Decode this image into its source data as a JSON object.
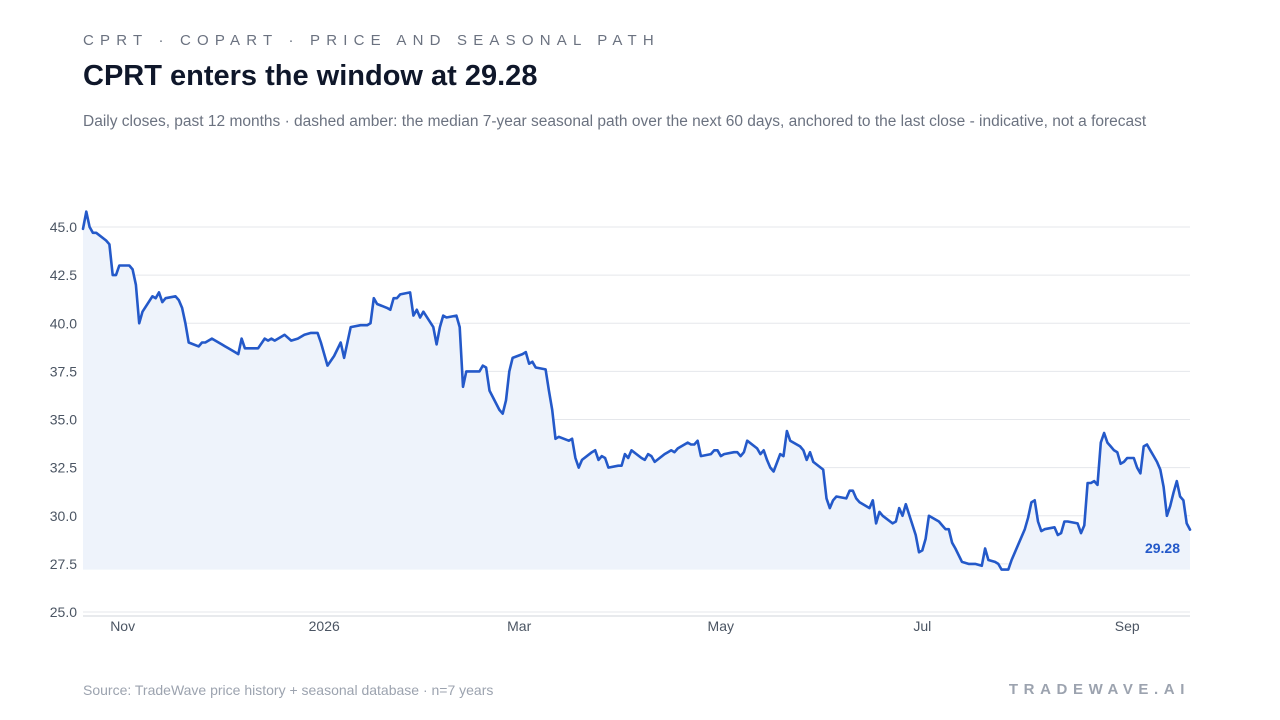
{
  "header": {
    "kicker": "CPRT · COPART · PRICE AND SEASONAL PATH",
    "title": "CPRT enters the window at 29.28",
    "subtitle": "Daily closes, past 12 months · dashed amber: the median 7-year seasonal path over the next 60 days, anchored to the last close - indicative, not a forecast"
  },
  "footer": {
    "source": "Source: TradeWave price history + seasonal database · n=7 years",
    "brand": "TRADEWAVE.AI"
  },
  "colors": {
    "line": "#2459c9",
    "fill": "#eef3fb",
    "grid": "#e5e7eb",
    "axis_text": "#4b5563",
    "seasonal": "#f59e0b"
  },
  "chart_data": {
    "type": "area",
    "title": "CPRT enters the window at 29.28",
    "xlabel": "",
    "ylabel": "",
    "ylim": [
      25.0,
      45.0
    ],
    "yticks": [
      25.0,
      27.5,
      30.0,
      32.5,
      35.0,
      37.5,
      40.0,
      42.5,
      45.0
    ],
    "xlim": [
      "2025-10-20",
      "2026-09-20"
    ],
    "xticks": [
      {
        "date": "2025-11-01",
        "label": "Nov"
      },
      {
        "date": "2026-01-01",
        "label": "2026"
      },
      {
        "date": "2026-03-01",
        "label": "Mar"
      },
      {
        "date": "2026-05-01",
        "label": "May"
      },
      {
        "date": "2026-07-01",
        "label": "Jul"
      },
      {
        "date": "2026-09-01",
        "label": "Sep"
      }
    ],
    "grid": true,
    "last_value_label": "29.28",
    "series": [
      {
        "name": "",
        "points": [
          [
            "2025-10-20",
            44.9
          ],
          [
            "2025-10-21",
            45.8
          ],
          [
            "2025-10-22",
            45.0
          ],
          [
            "2025-10-23",
            44.7
          ],
          [
            "2025-10-24",
            44.7
          ],
          [
            "2025-10-27",
            44.3
          ],
          [
            "2025-10-28",
            44.1
          ],
          [
            "2025-10-29",
            42.5
          ],
          [
            "2025-10-30",
            42.5
          ],
          [
            "2025-10-31",
            43.0
          ],
          [
            "2025-11-03",
            43.0
          ],
          [
            "2025-11-04",
            42.8
          ],
          [
            "2025-11-05",
            42.0
          ],
          [
            "2025-11-06",
            40.0
          ],
          [
            "2025-11-07",
            40.6
          ],
          [
            "2025-11-10",
            41.4
          ],
          [
            "2025-11-11",
            41.3
          ],
          [
            "2025-11-12",
            41.6
          ],
          [
            "2025-11-13",
            41.1
          ],
          [
            "2025-11-14",
            41.3
          ],
          [
            "2025-11-17",
            41.4
          ],
          [
            "2025-11-18",
            41.2
          ],
          [
            "2025-11-19",
            40.8
          ],
          [
            "2025-11-20",
            40.0
          ],
          [
            "2025-11-21",
            39.0
          ],
          [
            "2025-11-24",
            38.8
          ],
          [
            "2025-11-25",
            39.0
          ],
          [
            "2025-11-26",
            39.0
          ],
          [
            "2025-11-28",
            39.2
          ],
          [
            "2025-12-01",
            38.9
          ],
          [
            "2025-12-02",
            38.8
          ],
          [
            "2025-12-03",
            38.7
          ],
          [
            "2025-12-05",
            38.5
          ],
          [
            "2025-12-06",
            38.4
          ],
          [
            "2025-12-07",
            39.2
          ],
          [
            "2025-12-08",
            38.7
          ],
          [
            "2025-12-11",
            38.7
          ],
          [
            "2025-12-12",
            38.7
          ],
          [
            "2025-12-14",
            39.2
          ],
          [
            "2025-12-15",
            39.1
          ],
          [
            "2025-12-16",
            39.2
          ],
          [
            "2025-12-17",
            39.1
          ],
          [
            "2025-12-19",
            39.3
          ],
          [
            "2025-12-20",
            39.4
          ],
          [
            "2025-12-22",
            39.1
          ],
          [
            "2025-12-24",
            39.2
          ],
          [
            "2025-12-26",
            39.4
          ],
          [
            "2025-12-28",
            39.5
          ],
          [
            "2025-12-30",
            39.5
          ],
          [
            "2025-12-31",
            39.0
          ],
          [
            "2026-01-02",
            37.8
          ],
          [
            "2026-01-04",
            38.3
          ],
          [
            "2026-01-06",
            39.0
          ],
          [
            "2026-01-07",
            38.2
          ],
          [
            "2026-01-08",
            39.0
          ],
          [
            "2026-01-09",
            39.8
          ],
          [
            "2026-01-12",
            39.9
          ],
          [
            "2026-01-14",
            39.9
          ],
          [
            "2026-01-15",
            40.0
          ],
          [
            "2026-01-16",
            41.3
          ],
          [
            "2026-01-17",
            41.0
          ],
          [
            "2026-01-20",
            40.8
          ],
          [
            "2026-01-21",
            40.7
          ],
          [
            "2026-01-22",
            41.3
          ],
          [
            "2026-01-23",
            41.3
          ],
          [
            "2026-01-24",
            41.5
          ],
          [
            "2026-01-27",
            41.6
          ],
          [
            "2026-01-28",
            40.4
          ],
          [
            "2026-01-29",
            40.7
          ],
          [
            "2026-01-30",
            40.3
          ],
          [
            "2026-01-31",
            40.6
          ],
          [
            "2026-02-03",
            39.8
          ],
          [
            "2026-02-04",
            38.9
          ],
          [
            "2026-02-05",
            39.8
          ],
          [
            "2026-02-06",
            40.4
          ],
          [
            "2026-02-07",
            40.3
          ],
          [
            "2026-02-10",
            40.4
          ],
          [
            "2026-02-11",
            39.8
          ],
          [
            "2026-02-12",
            36.7
          ],
          [
            "2026-02-13",
            37.5
          ],
          [
            "2026-02-17",
            37.5
          ],
          [
            "2026-02-18",
            37.8
          ],
          [
            "2026-02-19",
            37.7
          ],
          [
            "2026-02-20",
            36.5
          ],
          [
            "2026-02-23",
            35.5
          ],
          [
            "2026-02-24",
            35.3
          ],
          [
            "2026-02-25",
            36.0
          ],
          [
            "2026-02-26",
            37.5
          ],
          [
            "2026-02-27",
            38.2
          ],
          [
            "2026-03-02",
            38.4
          ],
          [
            "2026-03-03",
            38.5
          ],
          [
            "2026-03-04",
            37.9
          ],
          [
            "2026-03-05",
            38.0
          ],
          [
            "2026-03-06",
            37.7
          ],
          [
            "2026-03-09",
            37.6
          ],
          [
            "2026-03-10",
            36.5
          ],
          [
            "2026-03-11",
            35.5
          ],
          [
            "2026-03-12",
            34.0
          ],
          [
            "2026-03-13",
            34.1
          ],
          [
            "2026-03-16",
            33.9
          ],
          [
            "2026-03-17",
            34.0
          ],
          [
            "2026-03-18",
            33.0
          ],
          [
            "2026-03-19",
            32.5
          ],
          [
            "2026-03-20",
            32.9
          ],
          [
            "2026-03-23",
            33.3
          ],
          [
            "2026-03-24",
            33.4
          ],
          [
            "2026-03-25",
            32.9
          ],
          [
            "2026-03-26",
            33.1
          ],
          [
            "2026-03-27",
            33.0
          ],
          [
            "2026-03-28",
            32.5
          ],
          [
            "2026-03-31",
            32.6
          ],
          [
            "2026-04-01",
            32.6
          ],
          [
            "2026-04-02",
            33.2
          ],
          [
            "2026-04-03",
            33.0
          ],
          [
            "2026-04-04",
            33.4
          ],
          [
            "2026-04-07",
            33.0
          ],
          [
            "2026-04-08",
            32.9
          ],
          [
            "2026-04-09",
            33.2
          ],
          [
            "2026-04-10",
            33.1
          ],
          [
            "2026-04-11",
            32.8
          ],
          [
            "2026-04-14",
            33.2
          ],
          [
            "2026-04-15",
            33.3
          ],
          [
            "2026-04-16",
            33.4
          ],
          [
            "2026-04-17",
            33.3
          ],
          [
            "2026-04-18",
            33.5
          ],
          [
            "2026-04-21",
            33.8
          ],
          [
            "2026-04-22",
            33.7
          ],
          [
            "2026-04-23",
            33.7
          ],
          [
            "2026-04-24",
            33.9
          ],
          [
            "2026-04-25",
            33.1
          ],
          [
            "2026-04-28",
            33.2
          ],
          [
            "2026-04-29",
            33.4
          ],
          [
            "2026-04-30",
            33.4
          ],
          [
            "2026-05-01",
            33.1
          ],
          [
            "2026-05-02",
            33.2
          ],
          [
            "2026-05-05",
            33.3
          ],
          [
            "2026-05-06",
            33.3
          ],
          [
            "2026-05-07",
            33.1
          ],
          [
            "2026-05-08",
            33.3
          ],
          [
            "2026-05-09",
            33.9
          ],
          [
            "2026-05-12",
            33.5
          ],
          [
            "2026-05-13",
            33.2
          ],
          [
            "2026-05-14",
            33.4
          ],
          [
            "2026-05-15",
            32.9
          ],
          [
            "2026-05-16",
            32.5
          ],
          [
            "2026-05-17",
            32.3
          ],
          [
            "2026-05-19",
            33.2
          ],
          [
            "2026-05-20",
            33.1
          ],
          [
            "2026-05-21",
            34.4
          ],
          [
            "2026-05-22",
            33.9
          ],
          [
            "2026-05-25",
            33.6
          ],
          [
            "2026-05-26",
            33.4
          ],
          [
            "2026-05-27",
            32.9
          ],
          [
            "2026-05-28",
            33.3
          ],
          [
            "2026-05-29",
            32.8
          ],
          [
            "2026-06-01",
            32.4
          ],
          [
            "2026-06-02",
            30.9
          ],
          [
            "2026-06-03",
            30.4
          ],
          [
            "2026-06-04",
            30.8
          ],
          [
            "2026-06-05",
            31.0
          ],
          [
            "2026-06-08",
            30.9
          ],
          [
            "2026-06-09",
            31.3
          ],
          [
            "2026-06-10",
            31.3
          ],
          [
            "2026-06-11",
            30.9
          ],
          [
            "2026-06-12",
            30.7
          ],
          [
            "2026-06-15",
            30.4
          ],
          [
            "2026-06-16",
            30.8
          ],
          [
            "2026-06-17",
            29.6
          ],
          [
            "2026-06-18",
            30.2
          ],
          [
            "2026-06-19",
            30.0
          ],
          [
            "2026-06-22",
            29.6
          ],
          [
            "2026-06-23",
            29.7
          ],
          [
            "2026-06-24",
            30.4
          ],
          [
            "2026-06-25",
            30.0
          ],
          [
            "2026-06-26",
            30.6
          ],
          [
            "2026-06-29",
            29.0
          ],
          [
            "2026-06-30",
            28.1
          ],
          [
            "2026-07-01",
            28.2
          ],
          [
            "2026-07-02",
            28.8
          ],
          [
            "2026-07-03",
            30.0
          ],
          [
            "2026-07-06",
            29.7
          ],
          [
            "2026-07-07",
            29.5
          ],
          [
            "2026-07-08",
            29.3
          ],
          [
            "2026-07-09",
            29.3
          ],
          [
            "2026-07-10",
            28.6
          ],
          [
            "2026-07-11",
            28.3
          ],
          [
            "2026-07-13",
            27.6
          ],
          [
            "2026-07-15",
            27.5
          ],
          [
            "2026-07-17",
            27.5
          ],
          [
            "2026-07-19",
            27.4
          ],
          [
            "2026-07-20",
            28.3
          ],
          [
            "2026-07-21",
            27.7
          ],
          [
            "2026-07-23",
            27.6
          ],
          [
            "2026-07-24",
            27.5
          ],
          [
            "2026-07-25",
            27.2
          ],
          [
            "2026-07-27",
            27.2
          ],
          [
            "2026-07-28",
            27.7
          ],
          [
            "2026-07-30",
            28.5
          ],
          [
            "2026-08-01",
            29.3
          ],
          [
            "2026-08-02",
            29.9
          ],
          [
            "2026-08-03",
            30.7
          ],
          [
            "2026-08-04",
            30.8
          ],
          [
            "2026-08-05",
            29.7
          ],
          [
            "2026-08-06",
            29.2
          ],
          [
            "2026-08-07",
            29.3
          ],
          [
            "2026-08-10",
            29.4
          ],
          [
            "2026-08-11",
            29.0
          ],
          [
            "2026-08-12",
            29.1
          ],
          [
            "2026-08-13",
            29.7
          ],
          [
            "2026-08-14",
            29.7
          ],
          [
            "2026-08-17",
            29.6
          ],
          [
            "2026-08-18",
            29.1
          ],
          [
            "2026-08-19",
            29.5
          ],
          [
            "2026-08-20",
            31.7
          ],
          [
            "2026-08-21",
            31.7
          ],
          [
            "2026-08-22",
            31.8
          ],
          [
            "2026-08-23",
            31.6
          ],
          [
            "2026-08-24",
            33.8
          ],
          [
            "2026-08-25",
            34.3
          ],
          [
            "2026-08-26",
            33.8
          ],
          [
            "2026-08-27",
            33.6
          ],
          [
            "2026-08-28",
            33.4
          ],
          [
            "2026-08-29",
            33.3
          ],
          [
            "2026-08-30",
            32.7
          ],
          [
            "2026-08-31",
            32.8
          ],
          [
            "2026-09-01",
            33.0
          ],
          [
            "2026-09-02",
            33.0
          ],
          [
            "2026-09-03",
            33.0
          ],
          [
            "2026-09-04",
            32.5
          ],
          [
            "2026-09-05",
            32.2
          ],
          [
            "2026-09-06",
            33.6
          ],
          [
            "2026-09-07",
            33.7
          ],
          [
            "2026-09-08",
            33.4
          ],
          [
            "2026-09-09",
            33.1
          ],
          [
            "2026-09-10",
            32.8
          ],
          [
            "2026-09-11",
            32.4
          ],
          [
            "2026-09-12",
            31.5
          ],
          [
            "2026-09-13",
            30.0
          ],
          [
            "2026-09-14",
            30.5
          ],
          [
            "2026-09-15",
            31.2
          ],
          [
            "2026-09-16",
            31.8
          ],
          [
            "2026-09-17",
            31.0
          ],
          [
            "2026-09-18",
            30.8
          ],
          [
            "2026-09-19",
            29.6
          ],
          [
            "2026-09-20",
            29.28
          ]
        ]
      }
    ]
  }
}
